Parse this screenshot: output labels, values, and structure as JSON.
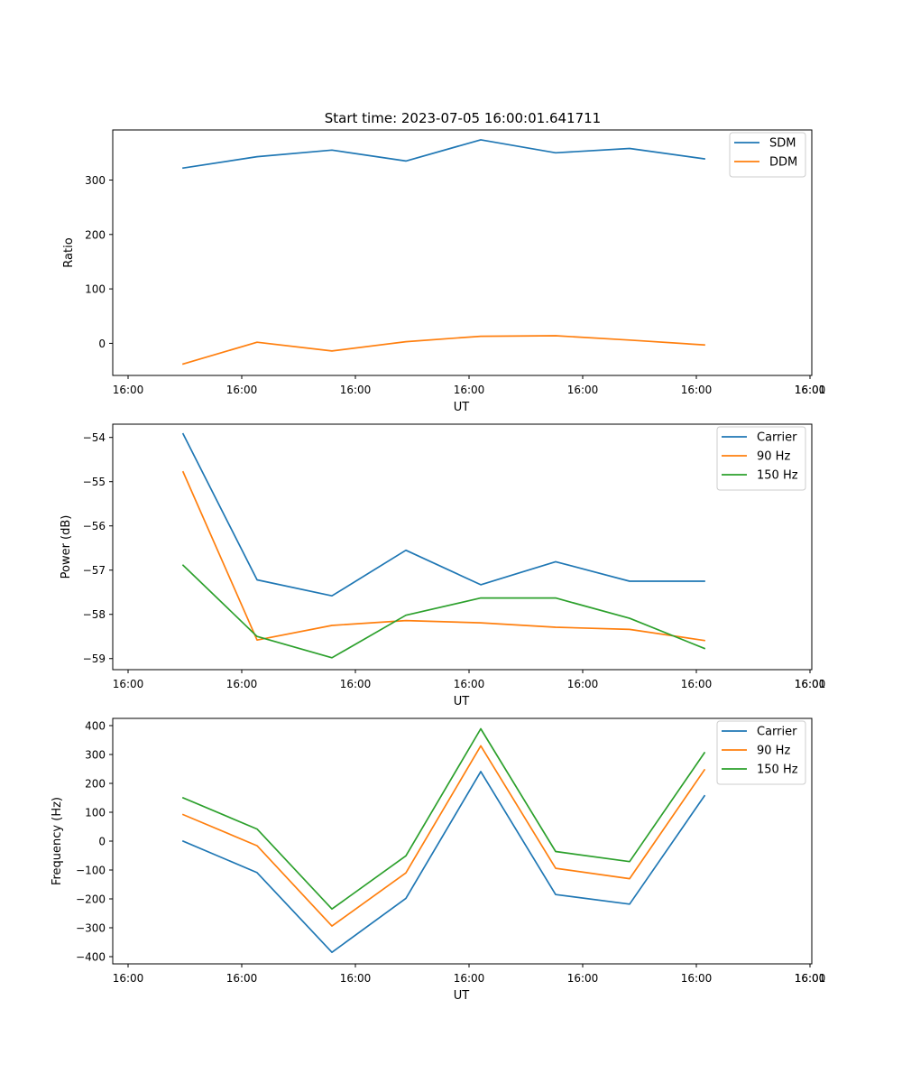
{
  "figure": {
    "title": "Start time: 2023-07-05 16:00:01.641711"
  },
  "colors": {
    "blue": "#1f77b4",
    "orange": "#ff7f0e",
    "green": "#2ca02c"
  },
  "chart_data": [
    {
      "type": "line",
      "title": "Start time: 2023-07-05 16:00:01.641711",
      "xlabel": "UT",
      "ylabel": "Ratio",
      "x": [
        0,
        1,
        2,
        3,
        4,
        5,
        6,
        7
      ],
      "xlim": [
        -0.75,
        8.5
      ],
      "ylim": [
        -59,
        392
      ],
      "x_ticks": [
        -0.75,
        0.75,
        2.25,
        3.75,
        5.25,
        6.75,
        8.25
      ],
      "x_tick_labels": [
        "16:00",
        "16:00",
        "16:00",
        "16:00",
        "16:00",
        "16:00",
        "16:00",
        "16:01"
      ],
      "x_tick_positions": [
        -0.75,
        0.75,
        2.25,
        3.75,
        5.25,
        6.75,
        8.25,
        9.75
      ],
      "y_ticks": [
        0,
        100,
        200,
        300
      ],
      "y_tick_labels": [
        "0",
        "100",
        "200",
        "300"
      ],
      "legend_position": "top-right",
      "series": [
        {
          "name": "SDM",
          "color": "#1f77b4",
          "values": [
            322,
            343,
            355,
            335,
            374,
            350,
            358,
            339
          ]
        },
        {
          "name": "DDM",
          "color": "#ff7f0e",
          "values": [
            -38,
            2,
            -14,
            3,
            13,
            14,
            6,
            -3
          ]
        }
      ]
    },
    {
      "type": "line",
      "title": "",
      "xlabel": "UT",
      "ylabel": "Power (dB)",
      "x": [
        0,
        1,
        2,
        3,
        4,
        5,
        6,
        7
      ],
      "xlim": [
        -0.75,
        8.5
      ],
      "ylim": [
        -59.25,
        -53.7
      ],
      "x_tick_labels": [
        "16:00",
        "16:00",
        "16:00",
        "16:00",
        "16:00",
        "16:00",
        "16:00",
        "16:01"
      ],
      "x_tick_positions": [
        -0.75,
        0.75,
        2.25,
        3.75,
        5.25,
        6.75,
        8.25,
        9.75
      ],
      "y_ticks": [
        -59,
        -58,
        -57,
        -56,
        -55,
        -54
      ],
      "y_tick_labels": [
        "−59",
        "−58",
        "−57",
        "−56",
        "−55",
        "−54"
      ],
      "legend_position": "top-right",
      "series": [
        {
          "name": "Carrier",
          "color": "#1f77b4",
          "values": [
            -53.92,
            -57.22,
            -57.58,
            -56.55,
            -57.33,
            -56.81,
            -57.25,
            -57.25
          ]
        },
        {
          "name": "90 Hz",
          "color": "#ff7f0e",
          "values": [
            -54.78,
            -58.58,
            -58.25,
            -58.14,
            -58.19,
            -58.29,
            -58.34,
            -58.59
          ]
        },
        {
          "name": "150 Hz",
          "color": "#2ca02c",
          "values": [
            -56.89,
            -58.5,
            -58.98,
            -58.02,
            -57.63,
            -57.63,
            -58.09,
            -58.77
          ]
        }
      ]
    },
    {
      "type": "line",
      "title": "",
      "xlabel": "UT",
      "ylabel": "Frequency (Hz)",
      "x": [
        0,
        1,
        2,
        3,
        4,
        5,
        6,
        7
      ],
      "xlim": [
        -0.75,
        8.5
      ],
      "ylim": [
        -425,
        425
      ],
      "x_tick_labels": [
        "16:00",
        "16:00",
        "16:00",
        "16:00",
        "16:00",
        "16:00",
        "16:00",
        "16:01"
      ],
      "x_tick_positions": [
        -0.75,
        0.75,
        2.25,
        3.75,
        5.25,
        6.75,
        8.25,
        9.75
      ],
      "y_ticks": [
        -400,
        -300,
        -200,
        -100,
        0,
        100,
        200,
        300,
        400
      ],
      "y_tick_labels": [
        "−400",
        "−300",
        "−200",
        "−100",
        "0",
        "100",
        "200",
        "300",
        "400"
      ],
      "legend_position": "top-right",
      "series": [
        {
          "name": "Carrier",
          "color": "#1f77b4",
          "values": [
            0,
            -109,
            -385,
            -198,
            241,
            -185,
            -218,
            157
          ]
        },
        {
          "name": "90 Hz",
          "color": "#ff7f0e",
          "values": [
            92,
            -16,
            -294,
            -110,
            330,
            -94,
            -130,
            247
          ]
        },
        {
          "name": "150 Hz",
          "color": "#2ca02c",
          "values": [
            150,
            42,
            -235,
            -51,
            389,
            -36,
            -71,
            306
          ]
        }
      ]
    }
  ]
}
